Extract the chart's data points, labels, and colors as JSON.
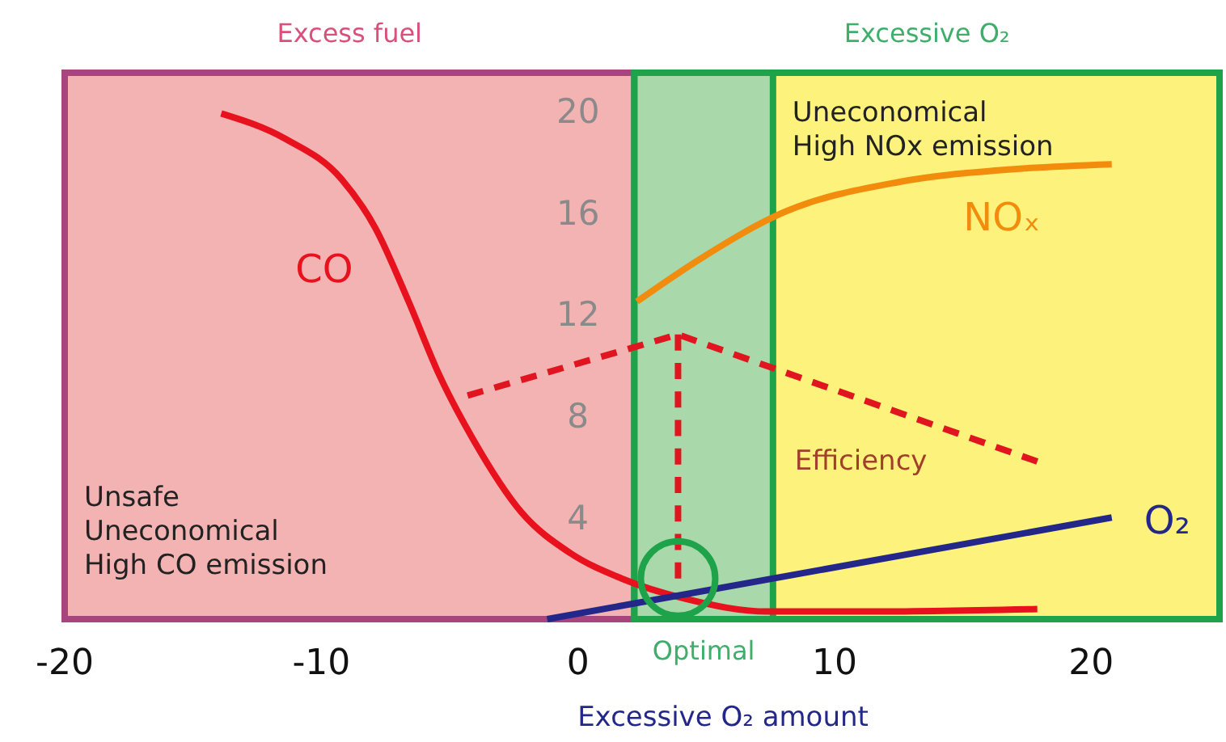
{
  "chart_data": {
    "type": "line",
    "xlabel": "Excessive O₂ amount",
    "xlim": [
      -20,
      25
    ],
    "ylim": [
      0,
      21.5
    ],
    "xticks": [
      -20,
      -10,
      0,
      10,
      20
    ],
    "yticks": [
      4,
      8,
      12,
      16,
      20
    ],
    "grid": false,
    "series": [
      {
        "name": "CO",
        "color": "#e8121e",
        "x": [
          -13.9,
          -11.4,
          -9.2,
          -7.9,
          -6.6,
          -5.4,
          -4.1,
          -2.2,
          -0.3,
          1.7,
          4.2,
          7.4,
          11.2,
          17.9
        ],
        "values": [
          19.9,
          18.9,
          17.3,
          15.4,
          12.5,
          9.6,
          7.1,
          4.2,
          2.6,
          1.6,
          0.8,
          0.3,
          0.3,
          0.4
        ]
      },
      {
        "name": "NOₓ",
        "color": "#f28c0c",
        "x": [
          2.3,
          4.8,
          8.0,
          12.5,
          16.9,
          20.8
        ],
        "values": [
          12.5,
          14.2,
          16.0,
          17.2,
          17.7,
          17.9
        ]
      },
      {
        "name": "O₂",
        "color": "#24278a",
        "x": [
          -1.2,
          20.8
        ],
        "values": [
          0,
          4.0
        ]
      },
      {
        "name": "Efficiency",
        "color": "#e0151f",
        "line_style": "dashed",
        "x": [
          -4.3,
          3.9,
          17.9
        ],
        "values": [
          8.8,
          11.2,
          6.2
        ]
      },
      {
        "color": "#e0151f",
        "line_style": "dashed",
        "x": [
          3.9,
          3.9
        ],
        "values": [
          11.2,
          1.6
        ]
      }
    ],
    "bands": [
      {
        "axis": "x",
        "from": -20,
        "to": 2.2,
        "label": "Excess fuel",
        "color": "#f4b3b3"
      },
      {
        "axis": "x",
        "from": 2.2,
        "to": 25,
        "label": "Excessive O₂",
        "color": "#fdf27c"
      },
      {
        "axis": "x",
        "from": 2.2,
        "to": 7.6,
        "label": "Optimal",
        "color": "#a9d8aa"
      }
    ],
    "annotations": [
      "Unsafe\nUneconomical\nHigh CO emission",
      "Uneconomical\nHigh NOx emission"
    ]
  }
}
